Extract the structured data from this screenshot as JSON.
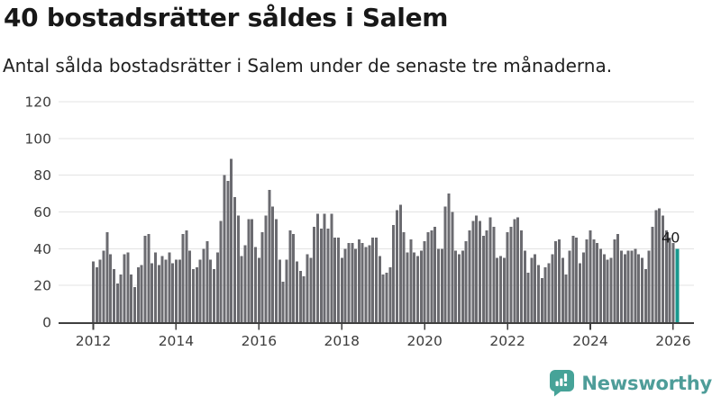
{
  "chart_data": {
    "type": "bar",
    "title": "40 bostadsrätter såldes i Salem",
    "subtitle": "Antal sålda bostadsrätter i Salem under de senaste tre månaderna.",
    "xlabel": "",
    "ylabel": "",
    "x_start": "2012-01",
    "x_end": "2026-02",
    "ylim": [
      0,
      120
    ],
    "grid": "horizontal",
    "legend": "none",
    "y_ticks": [
      0,
      20,
      40,
      60,
      80,
      100,
      120
    ],
    "x_ticks": [
      {
        "label": "2012",
        "index": 0
      },
      {
        "label": "2014",
        "index": 24
      },
      {
        "label": "2016",
        "index": 48
      },
      {
        "label": "2018",
        "index": 72
      },
      {
        "label": "2020",
        "index": 96
      },
      {
        "label": "2022",
        "index": 120
      },
      {
        "label": "2024",
        "index": 144
      },
      {
        "label": "2026",
        "index": 168
      }
    ],
    "values": [
      33,
      30,
      34,
      39,
      49,
      37,
      29,
      21,
      26,
      37,
      38,
      26,
      19,
      30,
      31,
      47,
      48,
      32,
      38,
      31,
      36,
      34,
      38,
      32,
      34,
      34,
      48,
      50,
      39,
      29,
      30,
      34,
      40,
      44,
      34,
      29,
      38,
      55,
      80,
      77,
      89,
      68,
      58,
      36,
      42,
      56,
      56,
      41,
      35,
      49,
      58,
      72,
      63,
      56,
      34,
      22,
      34,
      50,
      48,
      33,
      28,
      25,
      37,
      35,
      52,
      59,
      51,
      59,
      51,
      59,
      46,
      46,
      35,
      40,
      43,
      43,
      40,
      45,
      43,
      41,
      42,
      46,
      46,
      36,
      26,
      27,
      30,
      53,
      61,
      64,
      49,
      38,
      45,
      38,
      36,
      39,
      44,
      49,
      50,
      52,
      40,
      40,
      63,
      70,
      60,
      39,
      37,
      39,
      44,
      50,
      55,
      58,
      55,
      47,
      50,
      57,
      52,
      35,
      36,
      35,
      49,
      52,
      56,
      57,
      50,
      39,
      27,
      35,
      37,
      31,
      24,
      30,
      32,
      37,
      44,
      45,
      35,
      26,
      39,
      47,
      46,
      32,
      38,
      45,
      50,
      45,
      43,
      40,
      37,
      34,
      35,
      45,
      48,
      39,
      37,
      39,
      39,
      40,
      37,
      35,
      29,
      39,
      52,
      61,
      62,
      58,
      50,
      46,
      43,
      40
    ],
    "annotation": {
      "text": "40",
      "index": 169
    },
    "colors": {
      "bar": "#6b6b70",
      "highlight": "#18988e",
      "grid": "#e3e3e3",
      "axis": "#3f3f3f",
      "tick_label": "#3d3d3d",
      "annotation": "#1a1a1a"
    }
  },
  "footer": {
    "brand": "Newsworthy",
    "brand_color": "#4e9d99",
    "icon_color": "#46a398",
    "logo_icon": "speech-bubble-bar-chart-icon"
  }
}
